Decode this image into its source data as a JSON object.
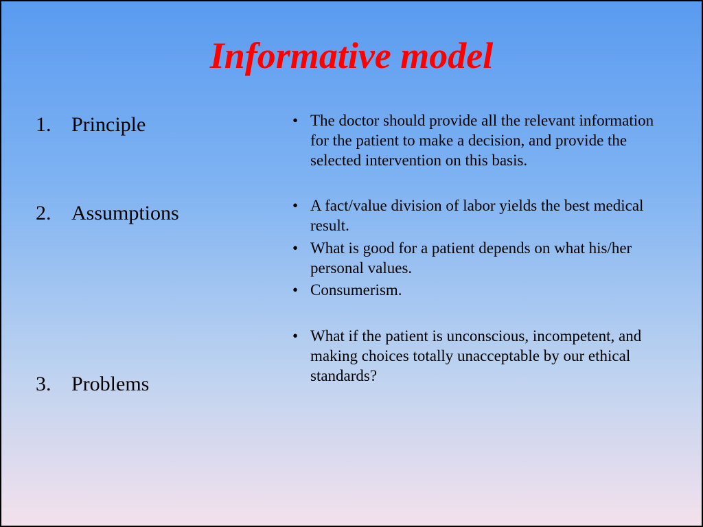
{
  "title": {
    "text": "Informative model",
    "color": "#ff0000",
    "fontsize_pt": 54,
    "italic": true,
    "bold": true
  },
  "left_list": {
    "fontsize_pt": 30,
    "color": "#000000",
    "items": [
      {
        "num": "1.",
        "label": "Principle"
      },
      {
        "num": "2.",
        "label": "Assumptions"
      },
      {
        "num": "3.",
        "label": "Problems"
      }
    ]
  },
  "right_bullets": {
    "fontsize_pt": 23,
    "color": "#000000",
    "bullet_glyph": "•",
    "groups": [
      [
        "The doctor should provide all the relevant information for the patient to make a decision, and provide the selected intervention on this basis."
      ],
      [
        "A fact/value division of labor yields the best medical result.",
        "What is good for a patient depends on what his/her personal values.",
        "Consumerism."
      ],
      [
        "What if the patient is unconscious, incompetent, and making choices totally unacceptable by our ethical standards?"
      ]
    ]
  },
  "background": {
    "gradient_stops": [
      "#5a9bf0",
      "#7fb3f2",
      "#bcd2f0",
      "#f3e1ec"
    ],
    "border_color": "#000000"
  }
}
